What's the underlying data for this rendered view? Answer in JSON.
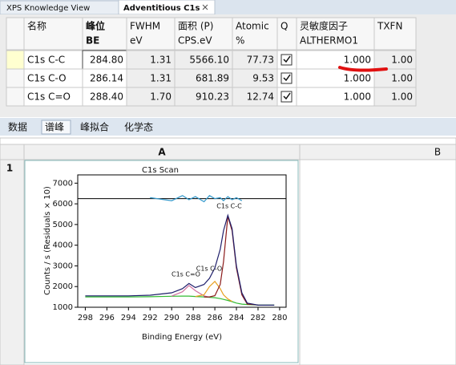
{
  "tabs": [
    "XPS Knowledge View",
    "Adventitious C1s"
  ],
  "table": {
    "header": [
      [
        "名称"
      ],
      [
        "峰位",
        "BE"
      ],
      [
        "FWHM",
        "eV"
      ],
      [
        "面积 (P)",
        "CPS.eV"
      ],
      [
        "Atomic",
        "%"
      ],
      [
        "Q"
      ],
      [
        "灵敏度因子",
        "ALTHERMO1"
      ],
      [
        "TXFN"
      ]
    ],
    "rows": [
      [
        "C1s C-C",
        "284.80",
        "1.31",
        "5566.10",
        "77.73",
        true,
        "1.000",
        "1.00"
      ],
      [
        "C1s C-O",
        "286.14",
        "1.31",
        "681.89",
        "9.53",
        true,
        "1.000",
        "1.00"
      ],
      [
        "C1s C=O",
        "288.40",
        "1.70",
        "910.23",
        "12.74",
        true,
        "1.000",
        "1.00"
      ]
    ]
  },
  "subtabs": [
    "数据",
    "谱峰",
    "峰拟合",
    "化学态"
  ],
  "sheet": {
    "columns": [
      "A",
      "B"
    ],
    "rows": [
      "1"
    ]
  },
  "chart_data": {
    "type": "line",
    "title": "C1s Scan",
    "x_label": "Binding Energy (eV)",
    "y_label": "Counts / s  (Residuals × 10)",
    "x": [
      298,
      296,
      294,
      292,
      290,
      289,
      288.4,
      287.8,
      287,
      286.5,
      286,
      285.5,
      285.2,
      284.8,
      284.4,
      284,
      283.5,
      283,
      282,
      281,
      280.5
    ],
    "series": [
      {
        "color": "#33bb33",
        "values": [
          1500,
          1500,
          1500,
          1510,
          1530,
          1540,
          1540,
          1520,
          1500,
          1480,
          1460,
          1420,
          1380,
          1330,
          1270,
          1200,
          1150,
          1130,
          1110,
          1100,
          1100
        ]
      },
      {
        "color": "#d070a0",
        "values": [
          null,
          null,
          null,
          null,
          1540,
          1750,
          2050,
          1800,
          1550,
          1480,
          null,
          null,
          null,
          null,
          null,
          null,
          null,
          null,
          null,
          null,
          null
        ]
      },
      {
        "color": "#e8a020",
        "values": [
          null,
          null,
          null,
          null,
          null,
          null,
          null,
          1520,
          1600,
          2000,
          2250,
          1900,
          1600,
          1400,
          1280,
          null,
          null,
          null,
          null,
          null,
          null
        ]
      },
      {
        "color": "#8b1a1a",
        "values": [
          null,
          null,
          null,
          null,
          null,
          null,
          null,
          null,
          1500,
          1500,
          1560,
          2100,
          3200,
          5400,
          4700,
          2900,
          1600,
          1150,
          1110,
          null,
          null
        ]
      },
      {
        "color": "#1f1f6b",
        "values": [
          1550,
          1550,
          1550,
          1580,
          1700,
          1900,
          2150,
          1950,
          2100,
          2400,
          2900,
          3800,
          4700,
          5450,
          4800,
          3000,
          1700,
          1200,
          1100,
          1100,
          1100
        ]
      },
      {
        "color": "#3399cc",
        "values": [
          null,
          null,
          null,
          6300,
          6150,
          6400,
          6200,
          6350,
          6100,
          6400,
          6250,
          6300,
          6150,
          6350,
          6200,
          6300,
          6150,
          null,
          null,
          null,
          null
        ]
      }
    ],
    "residual_zero": 6250,
    "annotations": [
      "C1s C-C",
      "C1s C-O",
      "C1s C=O"
    ],
    "xlim": [
      298.7,
      279.4
    ],
    "ylim": [
      1000,
      7400
    ],
    "xticks": [
      298,
      296,
      294,
      292,
      290,
      288,
      286,
      284,
      282,
      280
    ],
    "yticks": [
      1000,
      2000,
      3000,
      4000,
      5000,
      6000,
      7000
    ]
  }
}
